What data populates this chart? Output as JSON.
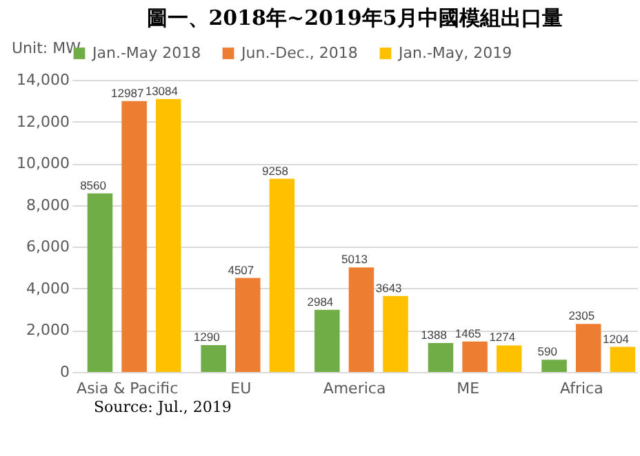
{
  "chart_data": {
    "type": "bar",
    "title": "圖一、2018年~2019年5月中國模組出口量",
    "ylabel": "Unit: MW",
    "annotations": [
      "Source: Jul., 2019"
    ],
    "categories": [
      "Asia & Pacific",
      "EU",
      "America",
      "ME",
      "Africa"
    ],
    "series": [
      {
        "name": "Jan.-May 2018",
        "color": "#70ad47",
        "values": [
          8560,
          1290,
          2984,
          1388,
          590
        ]
      },
      {
        "name": "Jun.-Dec., 2018",
        "color": "#ed7d31",
        "values": [
          12987,
          4507,
          5013,
          1465,
          2305
        ]
      },
      {
        "name": "Jan.-May, 2019",
        "color": "#ffc000",
        "values": [
          13084,
          9258,
          3643,
          1274,
          1204
        ]
      }
    ],
    "ylim": [
      0,
      14000
    ],
    "yticks": [
      0,
      {
        "value": 2000,
        "label": "2,000"
      },
      {
        "value": 4000,
        "label": "4,000"
      },
      {
        "value": 6000,
        "label": "6,000"
      },
      {
        "value": 8000,
        "label": "8,000"
      },
      {
        "value": 10000,
        "label": "10,000"
      },
      {
        "value": 12000,
        "label": "12,000"
      },
      {
        "value": 14000,
        "label": "14,000"
      }
    ],
    "grid": "y",
    "legend": "top",
    "data_labels": true
  }
}
